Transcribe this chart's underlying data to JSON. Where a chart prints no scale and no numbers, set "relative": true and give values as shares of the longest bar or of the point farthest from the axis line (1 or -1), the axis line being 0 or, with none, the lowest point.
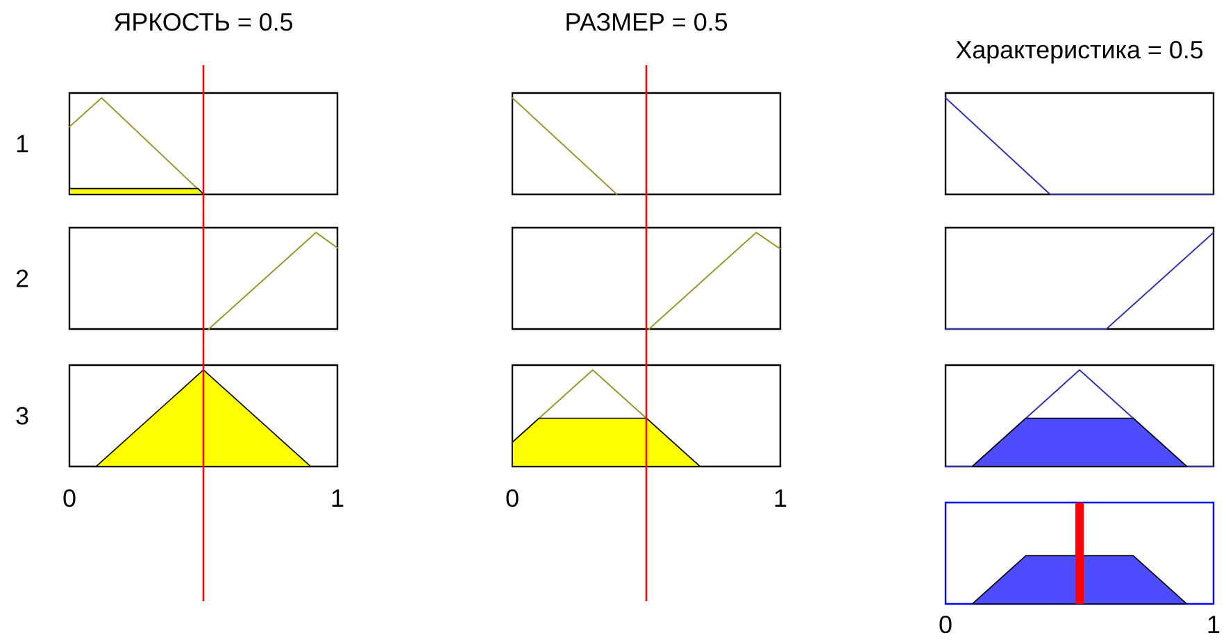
{
  "chart_data": [
    {
      "type": "line",
      "title": "ЯРКОСТЬ = 0.5",
      "ylabel": "1",
      "relative": true,
      "xlim": [
        0,
        1
      ],
      "tick_labels": false,
      "series": [
        {
          "color": "#999933",
          "x": [
            0,
            0.12,
            0.5
          ],
          "values": [
            0.7,
            1,
            0
          ]
        },
        {
          "type": "area",
          "color": "#ffff00",
          "x": [
            0,
            0.48,
            0.5
          ],
          "values": [
            0.06,
            0.06,
            0
          ]
        }
      ],
      "ref_lines": [
        {
          "axis": "x",
          "value": 0.5,
          "color": "#ff0000"
        }
      ]
    },
    {
      "type": "line",
      "title": "РАЗМЕР = 0.5",
      "relative": true,
      "xlim": [
        0,
        1
      ],
      "tick_labels": false,
      "series": [
        {
          "color": "#999933",
          "x": [
            0,
            0.39
          ],
          "values": [
            1,
            0
          ]
        }
      ],
      "ref_lines": [
        {
          "axis": "x",
          "value": 0.5,
          "color": "#ff0000"
        }
      ]
    },
    {
      "type": "line",
      "title": "Характеристика = 0.5",
      "relative": true,
      "xlim": [
        0,
        1
      ],
      "tick_labels": false,
      "series": [
        {
          "color": "#3535a8",
          "x": [
            0,
            0.39,
            1
          ],
          "values": [
            1,
            0,
            0
          ]
        }
      ]
    },
    {
      "type": "line",
      "ylabel": "2",
      "relative": true,
      "xlim": [
        0,
        1
      ],
      "tick_labels": false,
      "series": [
        {
          "color": "#999933",
          "x": [
            0.52,
            0.92,
            1
          ],
          "values": [
            0,
            1,
            0.84
          ]
        }
      ],
      "ref_lines": [
        {
          "axis": "x",
          "value": 0.5,
          "color": "#ff0000"
        }
      ]
    },
    {
      "type": "line",
      "relative": true,
      "xlim": [
        0,
        1
      ],
      "tick_labels": false,
      "series": [
        {
          "color": "#999933",
          "x": [
            0.51,
            0.91,
            1
          ],
          "values": [
            0,
            1,
            0.83
          ]
        }
      ],
      "ref_lines": [
        {
          "axis": "x",
          "value": 0.5,
          "color": "#ff0000"
        }
      ]
    },
    {
      "type": "line",
      "relative": true,
      "xlim": [
        0,
        1
      ],
      "tick_labels": false,
      "series": [
        {
          "color": "#3535a8",
          "x": [
            0,
            0.6,
            1
          ],
          "values": [
            0,
            0,
            1
          ]
        }
      ]
    },
    {
      "type": "area",
      "ylabel": "3",
      "relative": true,
      "xlim": [
        0,
        1
      ],
      "xticks": [
        0,
        1
      ],
      "tick_labels": "x",
      "series": [
        {
          "color": "#ffff00",
          "x": [
            0.1,
            0.5,
            0.9
          ],
          "values": [
            0,
            1,
            0
          ]
        }
      ],
      "ref_lines": [
        {
          "axis": "x",
          "value": 0.5,
          "color": "#ff0000"
        }
      ]
    },
    {
      "type": "line",
      "relative": true,
      "xlim": [
        0,
        1
      ],
      "xticks": [
        0,
        1
      ],
      "tick_labels": "x",
      "series": [
        {
          "color": "#999933",
          "x": [
            0,
            0.3,
            0.7
          ],
          "values": [
            0.25,
            1,
            0
          ]
        },
        {
          "type": "area",
          "color": "#ffff00",
          "x": [
            0,
            0.1,
            0.5,
            0.7
          ],
          "values": [
            0.25,
            0.5,
            0.5,
            0
          ]
        }
      ],
      "ref_lines": [
        {
          "axis": "x",
          "value": 0.5,
          "color": "#ff0000"
        }
      ]
    },
    {
      "type": "line",
      "relative": true,
      "xlim": [
        0,
        1
      ],
      "tick_labels": false,
      "series": [
        {
          "color": "#3535a8",
          "x": [
            0,
            0.1,
            0.5,
            0.9,
            1
          ],
          "values": [
            0,
            0,
            1,
            0,
            0
          ]
        },
        {
          "type": "area",
          "color": "#4d4dff",
          "x": [
            0.1,
            0.3,
            0.7,
            0.9
          ],
          "values": [
            0,
            0.5,
            0.5,
            0
          ]
        }
      ]
    },
    {
      "type": "area",
      "relative": true,
      "xlim": [
        0,
        1
      ],
      "xticks": [
        0,
        1
      ],
      "tick_labels": "x",
      "series": [
        {
          "color": "#4d4dff",
          "x": [
            0.1,
            0.3,
            0.7,
            0.9
          ],
          "values": [
            0,
            1,
            1,
            0
          ]
        }
      ],
      "ref_lines": [
        {
          "axis": "x",
          "value": 0.5,
          "color": "#ff0000"
        }
      ]
    }
  ]
}
